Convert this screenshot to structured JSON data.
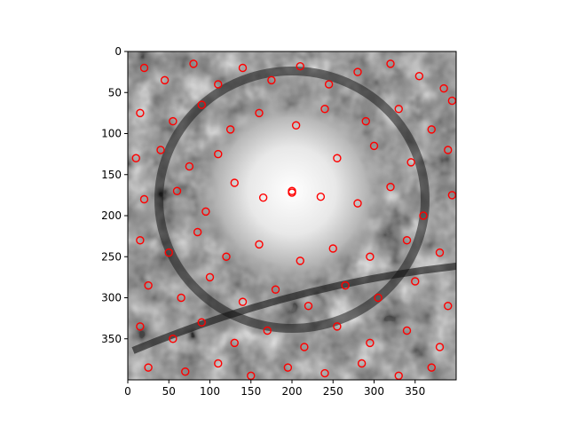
{
  "figure": {
    "background": "#ffffff",
    "marker_color": "#ff0000",
    "image_colormap": "gray"
  },
  "chart_data": {
    "type": "scatter",
    "title": "",
    "xlabel": "",
    "ylabel": "",
    "xlim": [
      0,
      400
    ],
    "ylim": [
      400,
      0
    ],
    "y_inverted": true,
    "grid": false,
    "legend": "none",
    "xticks": [
      0,
      50,
      100,
      150,
      200,
      250,
      300,
      350
    ],
    "yticks": [
      0,
      50,
      100,
      150,
      200,
      250,
      300,
      350
    ],
    "xtick_labels": [
      "0",
      "50",
      "100",
      "150",
      "200",
      "250",
      "300",
      "350"
    ],
    "ytick_labels": [
      "0",
      "50",
      "100",
      "150",
      "200",
      "250",
      "300",
      "350"
    ],
    "background_image": "grayscale microscopy-like texture with bright central disk",
    "marker": "hollow-circle",
    "series": [
      {
        "points": [
          [
            200,
            170
          ],
          [
            235,
            177
          ],
          [
            165,
            178
          ],
          [
            200,
            172
          ],
          [
            20,
            20
          ],
          [
            45,
            35
          ],
          [
            80,
            15
          ],
          [
            110,
            40
          ],
          [
            140,
            20
          ],
          [
            175,
            35
          ],
          [
            210,
            18
          ],
          [
            245,
            40
          ],
          [
            280,
            25
          ],
          [
            320,
            15
          ],
          [
            355,
            30
          ],
          [
            385,
            45
          ],
          [
            15,
            75
          ],
          [
            55,
            85
          ],
          [
            90,
            65
          ],
          [
            125,
            95
          ],
          [
            160,
            75
          ],
          [
            205,
            90
          ],
          [
            240,
            70
          ],
          [
            290,
            85
          ],
          [
            330,
            70
          ],
          [
            370,
            95
          ],
          [
            395,
            60
          ],
          [
            10,
            130
          ],
          [
            40,
            120
          ],
          [
            75,
            140
          ],
          [
            110,
            125
          ],
          [
            255,
            130
          ],
          [
            300,
            115
          ],
          [
            345,
            135
          ],
          [
            390,
            120
          ],
          [
            20,
            180
          ],
          [
            60,
            170
          ],
          [
            95,
            195
          ],
          [
            130,
            160
          ],
          [
            280,
            185
          ],
          [
            320,
            165
          ],
          [
            360,
            200
          ],
          [
            395,
            175
          ],
          [
            15,
            230
          ],
          [
            50,
            245
          ],
          [
            85,
            220
          ],
          [
            120,
            250
          ],
          [
            160,
            235
          ],
          [
            210,
            255
          ],
          [
            250,
            240
          ],
          [
            295,
            250
          ],
          [
            340,
            230
          ],
          [
            380,
            245
          ],
          [
            25,
            285
          ],
          [
            65,
            300
          ],
          [
            100,
            275
          ],
          [
            140,
            305
          ],
          [
            180,
            290
          ],
          [
            220,
            310
          ],
          [
            265,
            285
          ],
          [
            305,
            300
          ],
          [
            350,
            280
          ],
          [
            390,
            310
          ],
          [
            15,
            335
          ],
          [
            55,
            350
          ],
          [
            90,
            330
          ],
          [
            130,
            355
          ],
          [
            170,
            340
          ],
          [
            215,
            360
          ],
          [
            255,
            335
          ],
          [
            295,
            355
          ],
          [
            340,
            340
          ],
          [
            380,
            360
          ],
          [
            25,
            385
          ],
          [
            70,
            390
          ],
          [
            110,
            380
          ],
          [
            150,
            395
          ],
          [
            195,
            385
          ],
          [
            240,
            392
          ],
          [
            285,
            380
          ],
          [
            330,
            395
          ],
          [
            370,
            385
          ]
        ]
      }
    ]
  }
}
